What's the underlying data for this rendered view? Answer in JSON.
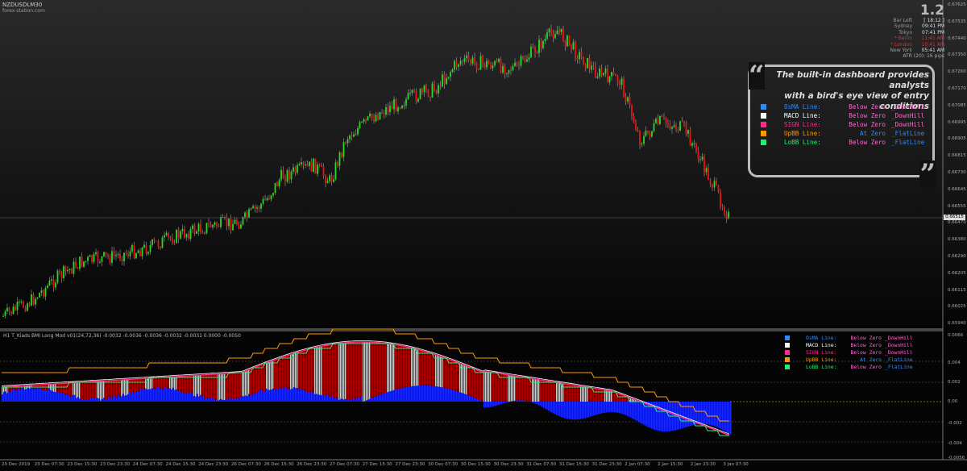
{
  "window": {
    "symbol_title": "NZDUSDLM30",
    "watermark": "forex-station.com"
  },
  "info_panel": {
    "big_value": "1.2",
    "rows": [
      {
        "label": "Bar Left",
        "value": "[ 18:12 ]",
        "alert": false
      },
      {
        "label": "Sydney",
        "value": "09:41 PM",
        "alert": false
      },
      {
        "label": "Tokyo",
        "value": "07:41 PM",
        "alert": false
      },
      {
        "label": "* Berlin",
        "value": "11:41 AM",
        "alert": true
      },
      {
        "label": "* London",
        "value": "10:41 AM",
        "alert": true
      },
      {
        "label": "New York",
        "value": "05:41 AM",
        "alert": false
      }
    ],
    "atr_label": "ATR (20): 16 pips"
  },
  "callout": {
    "line1": "The built-in dashboard provides analysts",
    "line2": "with a bird's eye view of entry conditions"
  },
  "dashboard": [
    {
      "name": "OsMA Line:",
      "status": "Below Zero",
      "trend": "_DownHill",
      "color": "#2a8cff",
      "name_color": "#2a8cff",
      "status_color": "#ff66cc",
      "trend_color": "#ff66cc"
    },
    {
      "name": "MACD Line:",
      "status": "Below Zero",
      "trend": "_DownHill",
      "color": "#ffffff",
      "name_color": "#ffffff",
      "status_color": "#ff66cc",
      "trend_color": "#ff66cc"
    },
    {
      "name": "SIGN Line:",
      "status": "Below Zero",
      "trend": "_DownHill",
      "color": "#ff2a8c",
      "name_color": "#ff2a8c",
      "status_color": "#ff66cc",
      "trend_color": "#ff66cc"
    },
    {
      "name": "UpBB Line:",
      "status": "At Zero",
      "trend": "_FlatLine",
      "color": "#ff9a00",
      "name_color": "#ff9a00",
      "status_color": "#2a8cff",
      "trend_color": "#2a8cff"
    },
    {
      "name": "LoBB Line:",
      "status": "Below Zero",
      "trend": "_FlatLine",
      "color": "#22ee77",
      "name_color": "#22ee77",
      "status_color": "#ff66cc",
      "trend_color": "#2a8cff"
    }
  ],
  "indicator": {
    "title": "H1 T_Kiads BMI Long Mod v01(24,72,36) -0.0032 -0.0036 -0.0036 -0.0032 -0.0031 0.0000 -0.0050",
    "axis_labels": [
      "0.0066",
      "0.004",
      "0.002",
      "0.00",
      "-0.002",
      "-0.004",
      "-0.0056"
    ]
  },
  "price_axis": {
    "labels": [
      "0.67625",
      "0.67535",
      "0.67440",
      "0.67350",
      "0.67260",
      "0.67170",
      "0.67085",
      "0.66995",
      "0.66905",
      "0.66815",
      "0.66730",
      "0.66645",
      "0.66555",
      "0.66470",
      "0.66380",
      "0.66290",
      "0.66205",
      "0.66115",
      "0.66025",
      "0.65940"
    ],
    "current": "0.66515"
  },
  "time_axis": {
    "labels": [
      "20 Dec 2019",
      "23 Dec 07:30",
      "23 Dec 15:30",
      "23 Dec 23:30",
      "24 Dec 07:30",
      "24 Dec 15:30",
      "24 Dec 23:30",
      "26 Dec 07:30",
      "26 Dec 15:30",
      "26 Dec 23:30",
      "27 Dec 07:30",
      "27 Dec 15:30",
      "27 Dec 23:30",
      "30 Dec 07:30",
      "30 Dec 15:30",
      "30 Dec 23:30",
      "31 Dec 07:30",
      "31 Dec 15:30",
      "31 Dec 23:30",
      "2 Jan 07:30",
      "2 Jan 15:30",
      "2 Jan 23:30",
      "3 Jan 07:30"
    ]
  },
  "colors": {
    "bull": "#22dd22",
    "bear": "#ee1111",
    "osma": "#1a2aff",
    "macd_bars": "#cccccc",
    "hist_red": "#aa0000",
    "upbb": "#ff9a00",
    "lobb": "#22ee77",
    "sign": "#ff2a8c"
  }
}
